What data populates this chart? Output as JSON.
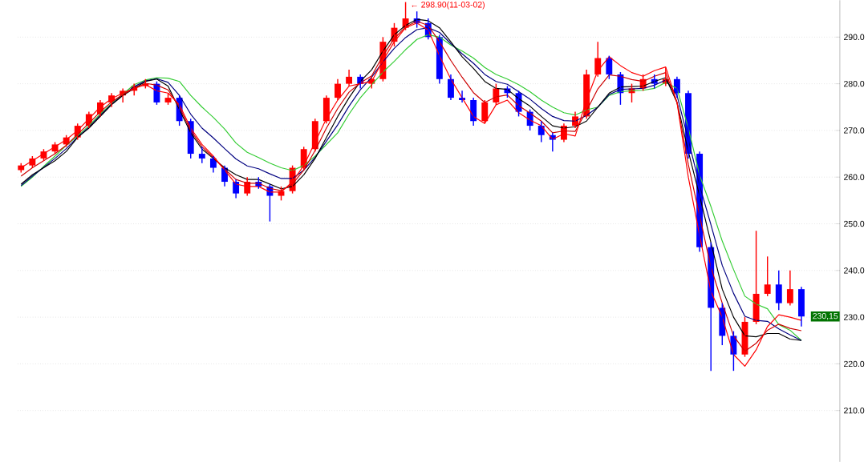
{
  "chart_data": {
    "type": "candlestick",
    "categories": [
      null,
      null,
      null,
      null,
      null,
      null,
      null,
      null,
      null,
      null,
      null,
      null,
      null,
      null,
      null,
      null,
      null,
      null,
      null,
      null,
      null,
      null,
      null,
      null,
      null,
      null,
      null,
      null,
      null,
      null,
      null,
      null,
      null,
      null,
      null,
      null,
      null,
      null,
      null,
      null,
      null,
      null,
      null,
      null,
      null,
      null,
      null,
      null,
      null,
      null,
      null,
      null,
      null,
      null,
      null,
      null,
      null,
      null,
      null,
      null,
      null,
      null,
      null,
      null,
      null,
      null,
      null,
      null,
      null,
      null
    ],
    "ohlc": [
      [
        261.5,
        263,
        261,
        262.5
      ],
      [
        262.5,
        264.5,
        262,
        264
      ],
      [
        264,
        266,
        263.5,
        265.5
      ],
      [
        265.5,
        267.5,
        265,
        267
      ],
      [
        267,
        269,
        266.5,
        268.5
      ],
      [
        268.5,
        271.5,
        268,
        271
      ],
      [
        271,
        274,
        270.5,
        273.5
      ],
      [
        273.5,
        276.5,
        273,
        276
      ],
      [
        276,
        278,
        275,
        277.5
      ],
      [
        277.5,
        279,
        276,
        278.5
      ],
      [
        278.5,
        280,
        277.5,
        279.5
      ],
      [
        279.5,
        281,
        279,
        280
      ],
      [
        280,
        280.5,
        275.5,
        276
      ],
      [
        276,
        278,
        275.5,
        277
      ],
      [
        277,
        277.5,
        271,
        272
      ],
      [
        272,
        272.5,
        264,
        265
      ],
      [
        265,
        266.5,
        263,
        264
      ],
      [
        264,
        264.5,
        261,
        262
      ],
      [
        262,
        262.5,
        258,
        259
      ],
      [
        259,
        259.5,
        255.5,
        256.5
      ],
      [
        256.5,
        260,
        256,
        259
      ],
      [
        259,
        260,
        257.5,
        258
      ],
      [
        258,
        258.5,
        250.5,
        256
      ],
      [
        256,
        258,
        255,
        257
      ],
      [
        257,
        262.5,
        256.5,
        262
      ],
      [
        262,
        266.5,
        261.5,
        266
      ],
      [
        266,
        272.5,
        265.5,
        272
      ],
      [
        272,
        277.5,
        271.5,
        277
      ],
      [
        277,
        281,
        276.5,
        280
      ],
      [
        280,
        283,
        279.5,
        281.5
      ],
      [
        281.5,
        282,
        279,
        280
      ],
      [
        280,
        281.5,
        279,
        281
      ],
      [
        281,
        290,
        280.5,
        289
      ],
      [
        289,
        293,
        288,
        292
      ],
      [
        292,
        297.5,
        291.5,
        294
      ],
      [
        294,
        295.5,
        292,
        293
      ],
      [
        293,
        294,
        289.5,
        290
      ],
      [
        290,
        290.5,
        280,
        281
      ],
      [
        281,
        282,
        276.5,
        277
      ],
      [
        277,
        278.5,
        276,
        276.5
      ],
      [
        276.5,
        277,
        271,
        272
      ],
      [
        272,
        276.5,
        271.5,
        276
      ],
      [
        276,
        280,
        275.5,
        279
      ],
      [
        279,
        279.5,
        277,
        278
      ],
      [
        278,
        278.5,
        273,
        274
      ],
      [
        274,
        274.5,
        270,
        271
      ],
      [
        271,
        272,
        267.5,
        269
      ],
      [
        269,
        269.5,
        265.5,
        268
      ],
      [
        268,
        271.5,
        267.5,
        271
      ],
      [
        271,
        274,
        270.5,
        273
      ],
      [
        273,
        283,
        272.5,
        282
      ],
      [
        282,
        289,
        281.5,
        285.5
      ],
      [
        285.5,
        286,
        281,
        282
      ],
      [
        282,
        282.5,
        275.5,
        278
      ],
      [
        278,
        280,
        276,
        279
      ],
      [
        279,
        282,
        278.5,
        281
      ],
      [
        281,
        282,
        279,
        280
      ],
      [
        280,
        283.5,
        279.5,
        281
      ],
      [
        281,
        281.5,
        277,
        278
      ],
      [
        278,
        278.5,
        264,
        265
      ],
      [
        265,
        265.5,
        244,
        245
      ],
      [
        245,
        246,
        218.5,
        232
      ],
      [
        232,
        233,
        224,
        226
      ],
      [
        226,
        227,
        218.5,
        222
      ],
      [
        222,
        230,
        221.5,
        229
      ],
      [
        229,
        248.5,
        228.5,
        235
      ],
      [
        235,
        243,
        234.5,
        237
      ],
      [
        237,
        240,
        231.5,
        233
      ],
      [
        233,
        240,
        232.5,
        236
      ],
      [
        236,
        236.5,
        228,
        230.15
      ]
    ],
    "colors": [
      "#ff0000",
      "#ff0000",
      "#ff0000",
      "#ff0000",
      "#ff0000",
      "#ff0000",
      "#ff0000",
      "#ff0000",
      "#ff0000",
      "#ff0000",
      "#ff0000",
      "#ff0000",
      "#0000ff",
      "#ff0000",
      "#0000ff",
      "#0000ff",
      "#0000ff",
      "#0000ff",
      "#0000ff",
      "#0000ff",
      "#ff0000",
      "#0000ff",
      "#0000ff",
      "#ff0000",
      "#ff0000",
      "#ff0000",
      "#ff0000",
      "#ff0000",
      "#ff0000",
      "#ff0000",
      "#0000ff",
      "#ff0000",
      "#ff0000",
      "#ff0000",
      "#ff0000",
      "#0000ff",
      "#0000ff",
      "#0000ff",
      "#0000ff",
      "#0000ff",
      "#0000ff",
      "#ff0000",
      "#ff0000",
      "#0000ff",
      "#0000ff",
      "#0000ff",
      "#0000ff",
      "#0000ff",
      "#ff0000",
      "#ff0000",
      "#ff0000",
      "#ff0000",
      "#0000ff",
      "#0000ff",
      "#ff0000",
      "#ff0000",
      "#0000ff",
      "#ff0000",
      "#0000ff",
      "#0000ff",
      "#0000ff",
      "#0000ff",
      "#0000ff",
      "#0000ff",
      "#ff0000",
      "#ff0000",
      "#ff0000",
      "#0000ff",
      "#ff0000",
      "#0000ff"
    ],
    "series": [
      {
        "type": "line",
        "color": "#33cc33",
        "values": [
          258,
          260,
          262.3,
          264.5,
          266.8,
          268.8,
          271,
          273.5,
          275.8,
          277.8,
          279.8,
          280.8,
          281.3,
          281.2,
          280.5,
          277.5,
          275,
          272.8,
          270.3,
          267.3,
          265.3,
          264.2,
          263,
          262,
          261.4,
          262.5,
          264.5,
          267,
          269.5,
          273.5,
          277,
          279.8,
          282.5,
          284.8,
          287.3,
          289.5,
          290.5,
          290,
          288.3,
          287,
          285.5,
          283.5,
          282,
          281,
          279.8,
          278.3,
          276.5,
          275,
          273.8,
          273.3,
          274.4,
          275,
          277.5,
          278.3,
          278.5,
          278.6,
          279,
          280.3,
          279,
          270.5,
          260.4,
          253.7,
          246.3,
          240.2,
          234.5,
          232.8,
          231.8,
          228.4,
          227.2,
          225
        ]
      },
      {
        "type": "line",
        "color": "#000080",
        "values": [
          258.2,
          260.2,
          262.1,
          264,
          266.1,
          268.6,
          270.7,
          273.2,
          275.6,
          277.6,
          279.4,
          280.6,
          281.1,
          280.3,
          277.5,
          273.5,
          270.5,
          268.4,
          266.1,
          263.9,
          262.4,
          261.8,
          260.7,
          259.7,
          259.7,
          261.5,
          264.2,
          267.7,
          271.2,
          275.2,
          278.7,
          281.4,
          284.7,
          287.6,
          289.9,
          291.6,
          292,
          291,
          288.6,
          286.4,
          284.4,
          282,
          280.5,
          279.9,
          278.3,
          276.7,
          274.7,
          273,
          272.1,
          272,
          273.2,
          275,
          277.7,
          278.8,
          278.9,
          279,
          279.7,
          280.8,
          277.5,
          268,
          258.2,
          249.8,
          241.1,
          235.1,
          230.2,
          229.3,
          229.1,
          227.5,
          226.2,
          225
        ]
      },
      {
        "type": "line",
        "color": "#000000",
        "values": [
          258.5,
          260.5,
          262,
          263.5,
          265.5,
          268.5,
          270.5,
          273,
          275.5,
          277.5,
          279,
          280.5,
          281,
          279.5,
          274.5,
          269.5,
          266,
          264,
          262,
          260.5,
          259.5,
          259.5,
          258.5,
          257.5,
          258,
          260.5,
          264,
          268.5,
          273,
          277,
          280.5,
          283,
          287,
          290.5,
          292.5,
          293.8,
          293.5,
          292,
          289,
          285.8,
          283.3,
          280.5,
          279,
          278.8,
          276.8,
          275.2,
          273,
          271,
          270.5,
          270.8,
          272,
          275,
          278,
          279.3,
          279.4,
          279.5,
          280.5,
          281.3,
          276,
          265.5,
          256,
          246,
          236,
          230,
          226,
          225.8,
          226.5,
          226.5,
          225.3,
          225
        ]
      },
      {
        "type": "line",
        "color": "#cc0000",
        "values": [
          260.2,
          262,
          263.5,
          265,
          266.8,
          269.2,
          271.5,
          274,
          276.1,
          277.7,
          279,
          280.1,
          279.7,
          278.7,
          275,
          270,
          266.5,
          264.2,
          261.7,
          259.5,
          258.7,
          258.7,
          257.6,
          257.1,
          258.5,
          261.5,
          265.7,
          270.5,
          274.7,
          278.2,
          280.2,
          281.7,
          286,
          289.7,
          292.2,
          293.4,
          292.5,
          289,
          285,
          281.4,
          278.1,
          276,
          277.2,
          277.6,
          275.3,
          273.7,
          272,
          269.5,
          269.9,
          269.8,
          274.2,
          278.9,
          281.9,
          281.6,
          280.9,
          280.5,
          281.6,
          282.4,
          276,
          262.7,
          251.7,
          240.7,
          233,
          226,
          222.7,
          224.4,
          227.2,
          228.5,
          227.6,
          227.1
        ]
      },
      {
        "type": "line",
        "color": "#ff0000",
        "values": [
          262,
          263.5,
          265,
          266.5,
          268,
          270,
          272.5,
          275,
          276.8,
          278,
          279,
          279.8,
          278.5,
          278,
          275.5,
          270.5,
          267,
          264.5,
          261.5,
          258.5,
          258,
          258,
          256.8,
          256.8,
          259,
          262.5,
          267.5,
          272.5,
          276.5,
          279.5,
          280,
          280.5,
          285,
          289,
          292,
          293,
          291.5,
          286,
          281,
          277,
          273,
          271.5,
          275.5,
          276.5,
          273.8,
          272.2,
          271,
          268.1,
          269.3,
          268.8,
          276.5,
          282.8,
          285.8,
          283.9,
          282.4,
          281.6,
          282.8,
          283.6,
          276,
          260,
          247.5,
          235.5,
          230,
          222,
          219.5,
          223,
          228,
          230.5,
          230,
          229.3
        ]
      }
    ],
    "ylim": [
      199,
      297.9
    ],
    "yticks": [
      {
        "value": 210,
        "label": "210.0"
      },
      {
        "value": 220,
        "label": "220.0"
      },
      {
        "value": 230,
        "label": "230.0"
      },
      {
        "value": 240,
        "label": "240.0"
      },
      {
        "value": 250,
        "label": "250.0"
      },
      {
        "value": 260,
        "label": "260.0"
      },
      {
        "value": 270,
        "label": "270.0"
      },
      {
        "value": 280,
        "label": "280.0"
      },
      {
        "value": 290,
        "label": "290.0"
      }
    ],
    "tick_labels": "y",
    "grid": "y",
    "marker": "none",
    "annotations": [
      "← 298.90(11-03-02)",
      "230,15"
    ]
  }
}
